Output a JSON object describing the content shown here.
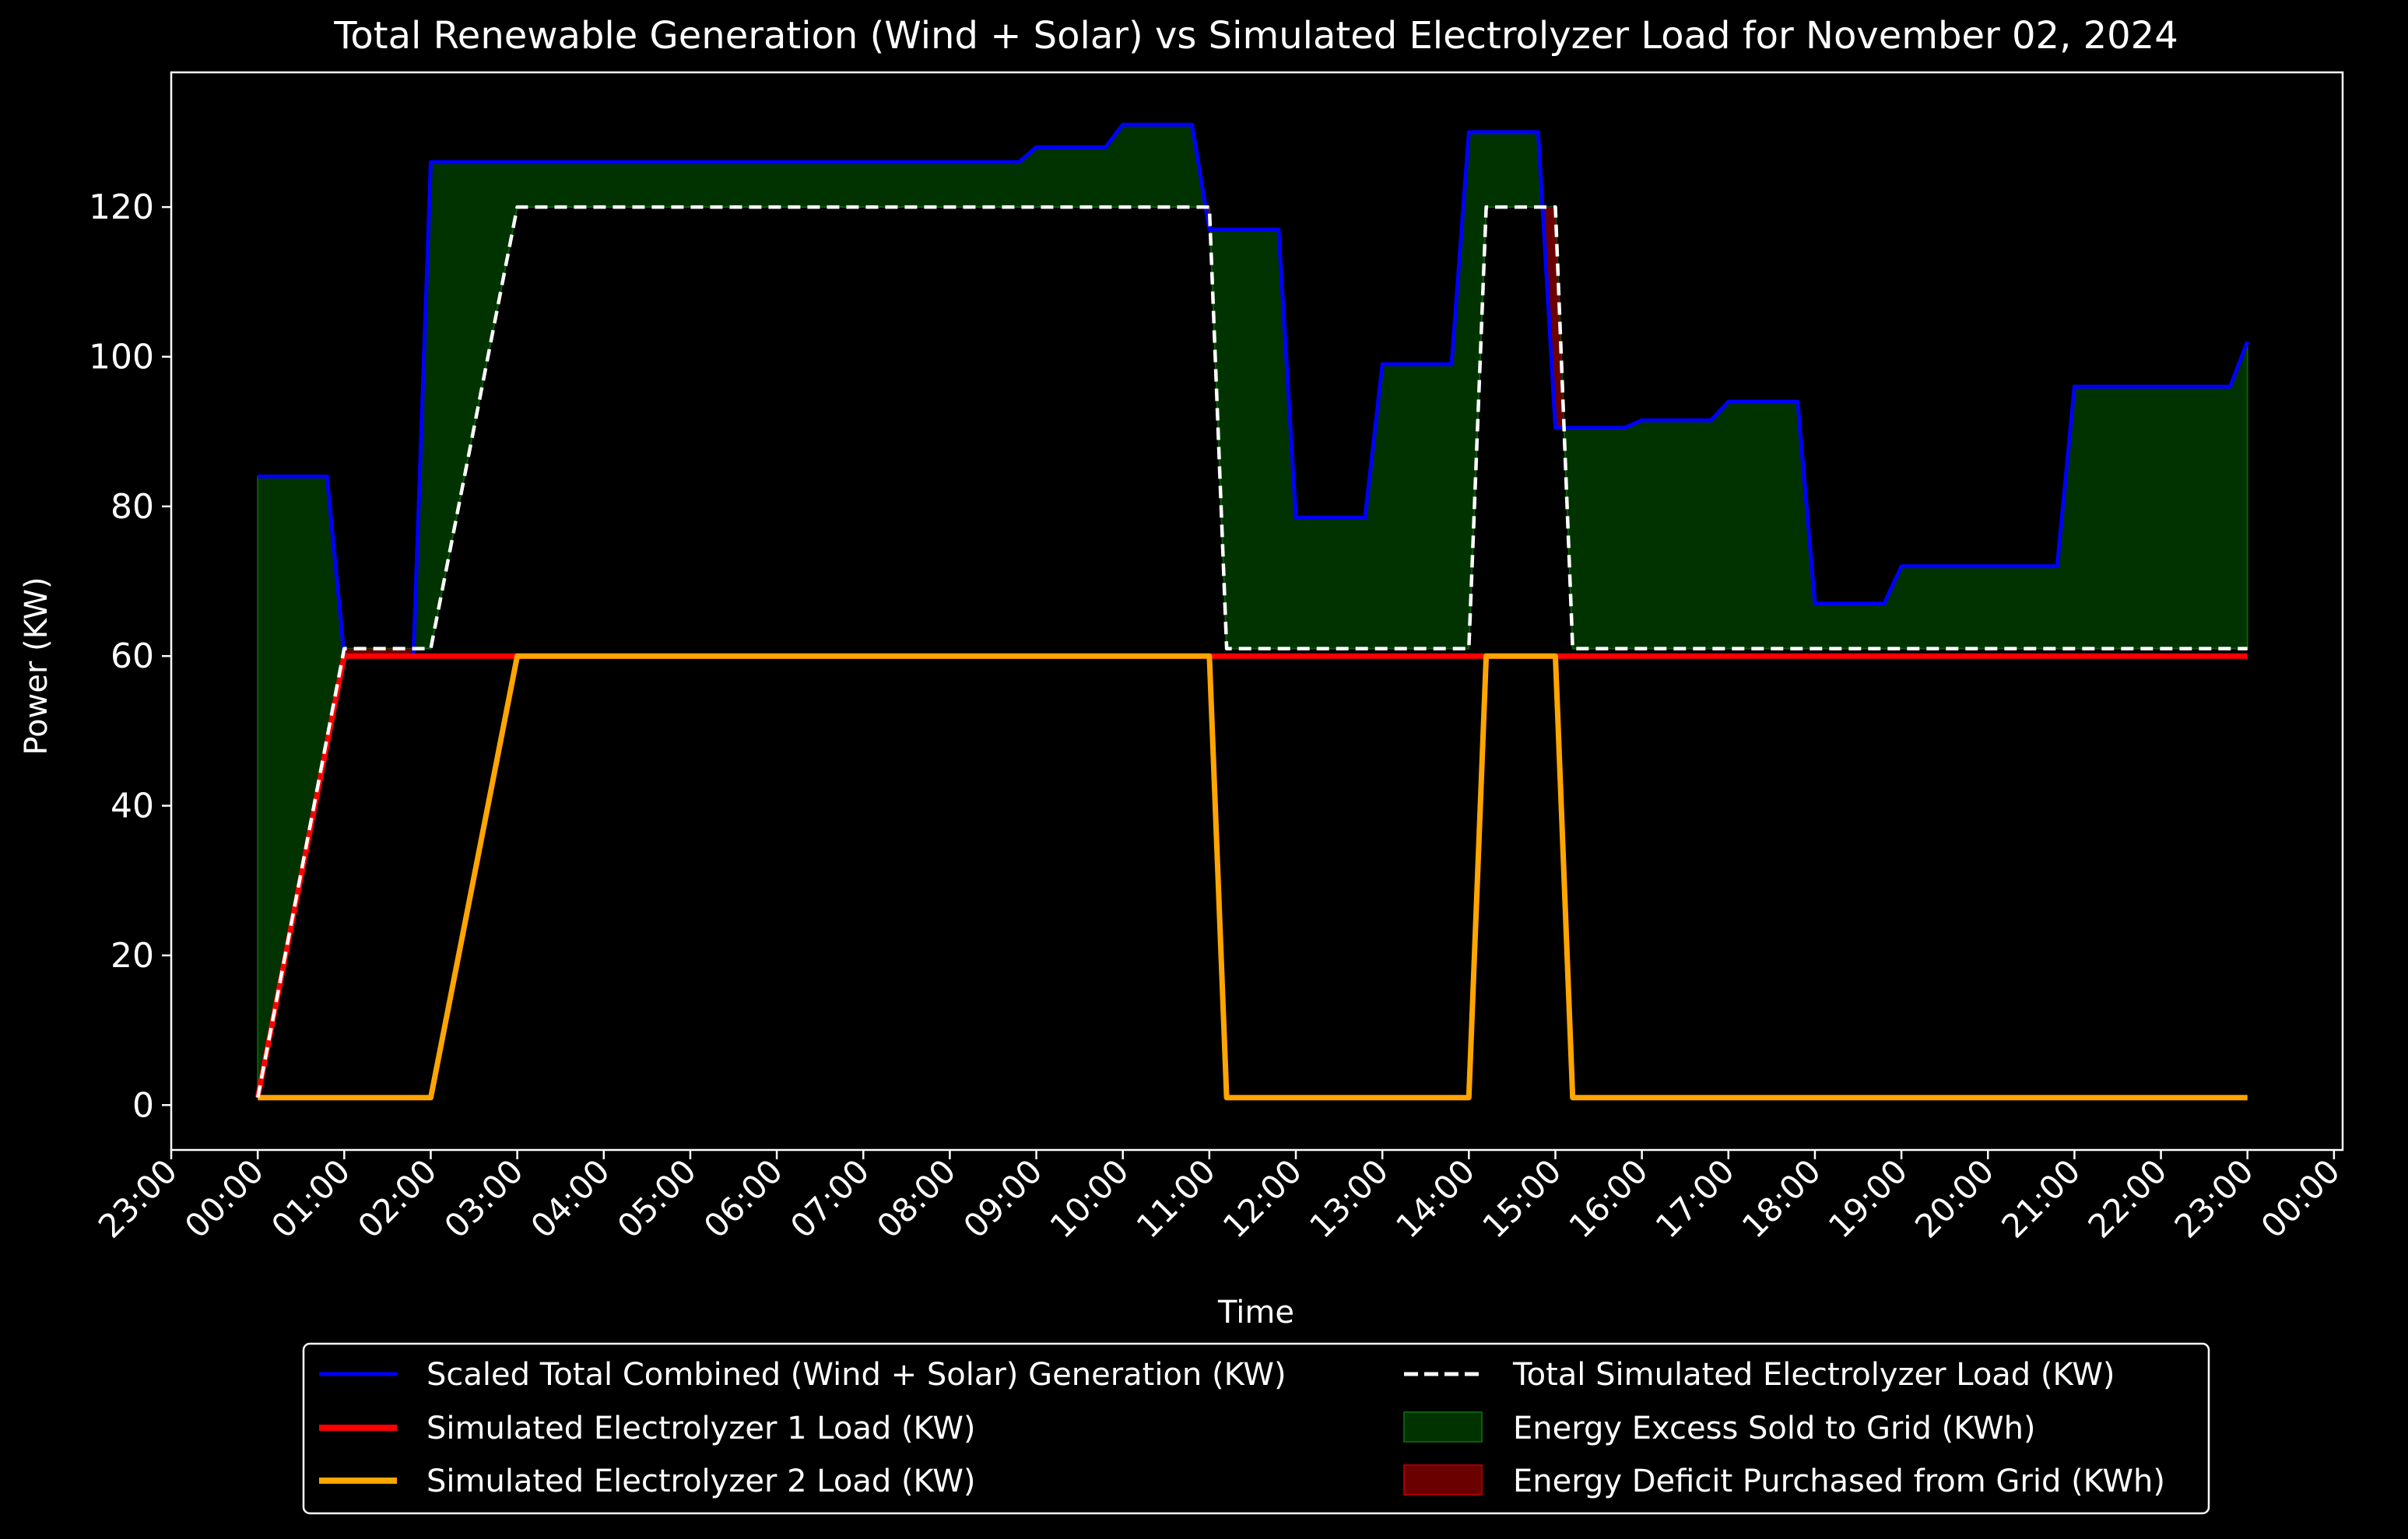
{
  "chart_data": {
    "type": "line",
    "title": "Total Renewable Generation (Wind + Solar) vs Simulated Electrolyzer Load for November 02, 2024",
    "xlabel": "Time",
    "ylabel": "Power (KW)",
    "x_ticks": [
      "23:00",
      "00:00",
      "01:00",
      "02:00",
      "03:00",
      "04:00",
      "05:00",
      "06:00",
      "07:00",
      "08:00",
      "09:00",
      "10:00",
      "11:00",
      "12:00",
      "13:00",
      "14:00",
      "15:00",
      "16:00",
      "17:00",
      "18:00",
      "19:00",
      "20:00",
      "21:00",
      "22:00",
      "23:00",
      "00:00"
    ],
    "x_unit": "hours from 00:00",
    "xlim": [
      -1.0,
      24.1
    ],
    "y_ticks": [
      0,
      20,
      40,
      60,
      80,
      100,
      120
    ],
    "ylim": [
      -6,
      138
    ],
    "grid": false,
    "legend_position": "lower center",
    "series": [
      {
        "name": "Scaled Total Combined (Wind + Solar) Generation (KW)",
        "color": "#0000ff",
        "style": "solid",
        "x": [
          0,
          0.8,
          1.0,
          1.8,
          2.0,
          8.8,
          9.0,
          9.8,
          10.0,
          10.8,
          11.0,
          11.8,
          12.0,
          12.8,
          13.0,
          13.8,
          14.0,
          14.8,
          15.0,
          15.8,
          16.0,
          16.8,
          17.0,
          17.8,
          18.0,
          18.8,
          19.0,
          20.8,
          21.0,
          22.8,
          23.0
        ],
        "y": [
          84,
          84,
          60,
          60,
          126,
          126,
          128,
          128,
          131,
          131,
          117,
          117,
          78.5,
          78.5,
          99,
          99,
          130,
          130,
          90.5,
          90.5,
          91.5,
          91.5,
          94,
          94,
          67,
          67,
          72,
          72,
          96,
          96,
          102
        ]
      },
      {
        "name": "Simulated Electrolyzer 1 Load (KW)",
        "color": "#ff0000",
        "style": "solid",
        "x": [
          0,
          1.0,
          23.0
        ],
        "y": [
          1,
          60,
          60
        ]
      },
      {
        "name": "Simulated Electrolyzer 2 Load (KW)",
        "color": "#ffa500",
        "style": "solid",
        "x": [
          0,
          2.0,
          3.0,
          11.0,
          11.2,
          14.0,
          14.2,
          15.0,
          15.2,
          23.0
        ],
        "y": [
          1,
          1,
          60,
          60,
          1,
          1,
          60,
          60,
          1,
          1
        ]
      },
      {
        "name": "Total Simulated Electrolyzer Load (KW)",
        "color": "#ffffff",
        "style": "dashed",
        "x": [
          0,
          1.0,
          2.0,
          3.0,
          11.0,
          11.2,
          14.0,
          14.2,
          15.0,
          15.2,
          23.0
        ],
        "y": [
          1,
          61,
          61,
          120,
          120,
          61,
          61,
          120,
          120,
          61,
          61
        ]
      }
    ],
    "fills": [
      {
        "name": "Energy Excess Sold to Grid (KWh)",
        "color": "#003300",
        "edge": "#0b5e0b"
      },
      {
        "name": "Energy Deficit Purchased from Grid (KWh)",
        "color": "#6b0000",
        "edge": "#a00000"
      }
    ]
  }
}
